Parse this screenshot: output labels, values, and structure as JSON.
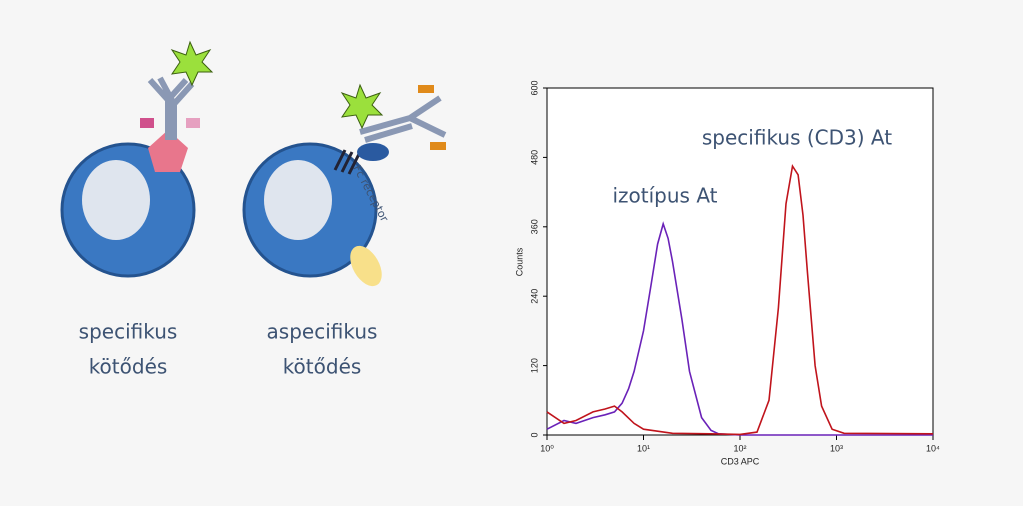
{
  "diagram": {
    "labels": [
      [
        "specifikus",
        "kötődés"
      ],
      [
        "aspecifikus",
        "kötődés"
      ]
    ],
    "fc_label": "Fc receptor"
  },
  "chart_data": {
    "type": "line",
    "xlabel": "CD3 APC",
    "ylabel": "Counts",
    "xscale": "log",
    "xlim": [
      1,
      10000
    ],
    "ylim": [
      0,
      600
    ],
    "xticks": [
      {
        "value": 1,
        "label": "10⁰"
      },
      {
        "value": 10,
        "label": "10¹"
      },
      {
        "value": 100,
        "label": "10²"
      },
      {
        "value": 1000,
        "label": "10³"
      },
      {
        "value": 10000,
        "label": "10⁴"
      }
    ],
    "yticks": [
      0,
      120,
      240,
      360,
      480,
      600
    ],
    "series": [
      {
        "name": "izotípus At",
        "color": "#6a22b8",
        "x": [
          1,
          1.5,
          2,
          3,
          4,
          5,
          6,
          7,
          8,
          10,
          12,
          14,
          16,
          18,
          20,
          25,
          30,
          40,
          50,
          60,
          100,
          1000,
          10000
        ],
        "values": [
          10,
          25,
          20,
          30,
          35,
          40,
          55,
          80,
          110,
          180,
          260,
          330,
          365,
          340,
          300,
          200,
          110,
          30,
          8,
          2,
          0,
          0,
          0
        ]
      },
      {
        "name": "specifikus (CD3) At",
        "color": "#c0141c",
        "x": [
          1,
          1.5,
          2,
          3,
          4,
          5,
          6,
          8,
          10,
          20,
          50,
          100,
          150,
          200,
          250,
          300,
          350,
          400,
          450,
          500,
          600,
          700,
          900,
          1200,
          10000
        ],
        "values": [
          40,
          20,
          25,
          40,
          45,
          50,
          40,
          20,
          10,
          3,
          2,
          1,
          5,
          60,
          220,
          400,
          465,
          450,
          380,
          280,
          120,
          50,
          10,
          3,
          2
        ]
      }
    ]
  }
}
